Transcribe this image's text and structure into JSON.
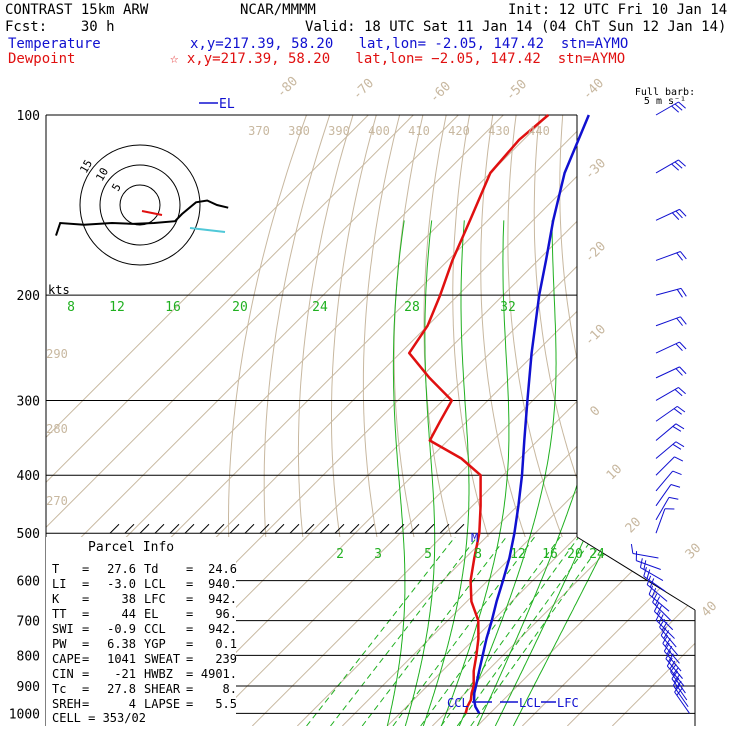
{
  "header": {
    "model": "CONTRAST 15km ARW",
    "source": "NCAR/MMMM",
    "init": "Init: 12 UTC Fri 10 Jan 14",
    "fcst": "Fcst:    30 h",
    "valid": "Valid: 18 UTC Sat 11 Jan 14 (04 ChT Sun 12 Jan 14)",
    "temp_label": "Temperature",
    "temp_info": "x,y=217.39, 58.20   lat,lon= -2.05, 147.42  stn=AYMO",
    "dew_label": "Dewpoint",
    "dew_info": "☆ x,y=217.39, 58.20   lat,lon= −2.05, 147.42  stn=AYMO"
  },
  "colors": {
    "temperature": "#1010d0",
    "dewpoint": "#e01010",
    "isotherm": "#c8b8a0",
    "dry_adiabat": "#c8b8a0",
    "moist_adiabat": "#20b020",
    "mixing_ratio": "#20b020",
    "isobar": "#000000"
  },
  "chart_data": {
    "type": "skew-t",
    "pressure_levels": [
      100,
      200,
      300,
      400,
      500,
      600,
      700,
      800,
      900,
      1000
    ],
    "temperature_profile": [
      {
        "p": 1000,
        "t": 27.6
      },
      {
        "p": 975,
        "t": 25.3
      },
      {
        "p": 950,
        "t": 23.5
      },
      {
        "p": 925,
        "t": 22.0
      },
      {
        "p": 900,
        "t": 20.8
      },
      {
        "p": 850,
        "t": 18.2
      },
      {
        "p": 800,
        "t": 15.5
      },
      {
        "p": 750,
        "t": 12.6
      },
      {
        "p": 700,
        "t": 9.8
      },
      {
        "p": 650,
        "t": 6.6
      },
      {
        "p": 600,
        "t": 3.4
      },
      {
        "p": 550,
        "t": -0.2
      },
      {
        "p": 500,
        "t": -4.6
      },
      {
        "p": 450,
        "t": -9.8
      },
      {
        "p": 400,
        "t": -15.8
      },
      {
        "p": 350,
        "t": -23.0
      },
      {
        "p": 300,
        "t": -31.2
      },
      {
        "p": 250,
        "t": -40.8
      },
      {
        "p": 200,
        "t": -52.0
      },
      {
        "p": 175,
        "t": -58.2
      },
      {
        "p": 150,
        "t": -65.5
      },
      {
        "p": 125,
        "t": -73.5
      },
      {
        "p": 100,
        "t": -81.0
      }
    ],
    "dewpoint_profile": [
      {
        "p": 1000,
        "t": 24.6
      },
      {
        "p": 975,
        "t": 23.5
      },
      {
        "p": 950,
        "t": 22.8
      },
      {
        "p": 925,
        "t": 21.4
      },
      {
        "p": 900,
        "t": 20.3
      },
      {
        "p": 850,
        "t": 17.0
      },
      {
        "p": 800,
        "t": 14.1
      },
      {
        "p": 750,
        "t": 10.8
      },
      {
        "p": 700,
        "t": 6.8
      },
      {
        "p": 650,
        "t": 1.0
      },
      {
        "p": 600,
        "t": -3.8
      },
      {
        "p": 550,
        "t": -8.0
      },
      {
        "p": 500,
        "t": -12.4
      },
      {
        "p": 450,
        "t": -18.2
      },
      {
        "p": 400,
        "t": -25.0
      },
      {
        "p": 375,
        "t": -33.0
      },
      {
        "p": 350,
        "t": -44.0
      },
      {
        "p": 325,
        "t": -46.0
      },
      {
        "p": 300,
        "t": -48.0
      },
      {
        "p": 275,
        "t": -58.0
      },
      {
        "p": 250,
        "t": -68.0
      },
      {
        "p": 225,
        "t": -70.0
      },
      {
        "p": 200,
        "t": -74.0
      },
      {
        "p": 175,
        "t": -79.0
      },
      {
        "p": 150,
        "t": -84.0
      },
      {
        "p": 125,
        "t": -90.0
      },
      {
        "p": 110,
        "t": -91.0
      },
      {
        "p": 100,
        "t": -90.0
      }
    ],
    "isotherm_labels": [
      -80,
      -70,
      -60,
      -50,
      -40,
      -30,
      -20,
      -10,
      0,
      10,
      20,
      30,
      40
    ],
    "dry_adiabat_labels_upper": [
      370,
      380,
      390,
      400,
      410,
      420,
      430,
      440
    ],
    "dry_adiabat_labels_left": [
      290,
      280,
      270
    ],
    "mixing_ratio_labels": [
      2,
      3,
      5,
      8,
      12,
      16,
      20,
      24
    ],
    "moist_adiabat_labels": [
      8,
      12,
      16,
      20,
      24,
      28,
      32
    ],
    "level_markers": {
      "el_label": "EL",
      "ccl_label": "CCL",
      "lcl_label": "LCL",
      "lfc_label": "LFC",
      "m_label": "M"
    },
    "wind_barbs": [
      {
        "p": 100,
        "dir": 240,
        "spd": 15
      },
      {
        "p": 125,
        "dir": 240,
        "spd": 15
      },
      {
        "p": 150,
        "dir": 245,
        "spd": 15
      },
      {
        "p": 175,
        "dir": 250,
        "spd": 10
      },
      {
        "p": 200,
        "dir": 255,
        "spd": 10
      },
      {
        "p": 225,
        "dir": 250,
        "spd": 10
      },
      {
        "p": 250,
        "dir": 245,
        "spd": 10
      },
      {
        "p": 275,
        "dir": 245,
        "spd": 10
      },
      {
        "p": 300,
        "dir": 240,
        "spd": 10
      },
      {
        "p": 325,
        "dir": 235,
        "spd": 10
      },
      {
        "p": 350,
        "dir": 230,
        "spd": 10
      },
      {
        "p": 375,
        "dir": 230,
        "spd": 10
      },
      {
        "p": 400,
        "dir": 225,
        "spd": 5
      },
      {
        "p": 425,
        "dir": 220,
        "spd": 5
      },
      {
        "p": 450,
        "dir": 215,
        "spd": 5
      },
      {
        "p": 475,
        "dir": 210,
        "spd": 5
      },
      {
        "p": 500,
        "dir": 200,
        "spd": 5
      },
      {
        "p": 550,
        "dir": 100,
        "spd": 5
      },
      {
        "p": 575,
        "dir": 110,
        "spd": 5
      },
      {
        "p": 600,
        "dir": 120,
        "spd": 10
      },
      {
        "p": 625,
        "dir": 125,
        "spd": 10
      },
      {
        "p": 650,
        "dir": 130,
        "spd": 10
      },
      {
        "p": 675,
        "dir": 130,
        "spd": 10
      },
      {
        "p": 700,
        "dir": 135,
        "spd": 10
      },
      {
        "p": 725,
        "dir": 135,
        "spd": 10
      },
      {
        "p": 750,
        "dir": 135,
        "spd": 10
      },
      {
        "p": 775,
        "dir": 140,
        "spd": 10
      },
      {
        "p": 800,
        "dir": 140,
        "spd": 10
      },
      {
        "p": 825,
        "dir": 140,
        "spd": 10
      },
      {
        "p": 850,
        "dir": 140,
        "spd": 10
      },
      {
        "p": 875,
        "dir": 140,
        "spd": 10
      },
      {
        "p": 900,
        "dir": 140,
        "spd": 10
      },
      {
        "p": 925,
        "dir": 145,
        "spd": 10
      },
      {
        "p": 950,
        "dir": 145,
        "spd": 10
      },
      {
        "p": 975,
        "dir": 145,
        "spd": 10
      },
      {
        "p": 1000,
        "dir": 145,
        "spd": 10
      }
    ],
    "barb_legend": {
      "line1": "Full barb:",
      "line2": "5 m s⁻¹"
    },
    "hodograph": {
      "unit_label": "kts",
      "ring_labels": [
        "15",
        "10",
        "5"
      ],
      "points": [
        [
          -60,
          34
        ],
        [
          -57,
          20
        ],
        [
          -40,
          22
        ],
        [
          -20,
          20
        ],
        [
          -5,
          21
        ],
        [
          10,
          20
        ],
        [
          25,
          18
        ],
        [
          30,
          10
        ],
        [
          40,
          -3
        ],
        [
          48,
          -5
        ],
        [
          55,
          0
        ],
        [
          63,
          3
        ]
      ]
    }
  },
  "parcel_info": {
    "title": "Parcel Info",
    "rows": [
      {
        "l1": "T",
        "v1": "27.6",
        "l2": "Td",
        "v2": "24.6"
      },
      {
        "l1": "LI",
        "v1": "-3.0",
        "l2": "LCL",
        "v2": "940."
      },
      {
        "l1": "K",
        "v1": "38",
        "l2": "LFC",
        "v2": "942."
      },
      {
        "l1": "TT",
        "v1": "44",
        "l2": "EL",
        "v2": "96."
      },
      {
        "l1": "SWI",
        "v1": "-0.9",
        "l2": "CCL",
        "v2": "942."
      },
      {
        "l1": "PW",
        "v1": "6.38",
        "l2": "YGP",
        "v2": "0.1"
      },
      {
        "l1": "CAPE",
        "v1": "1041",
        "l2": "SWEAT",
        "v2": "239"
      },
      {
        "l1": "CIN",
        "v1": "-21",
        "l2": "HWBZ",
        "v2": "4901."
      },
      {
        "l1": "Tc",
        "v1": "27.8",
        "l2": "SHEAR",
        "v2": "8."
      },
      {
        "l1": "SREH",
        "v1": "4",
        "l2": "LAPSE",
        "v2": "5.5"
      }
    ],
    "cell": "CELL = 353/02"
  }
}
